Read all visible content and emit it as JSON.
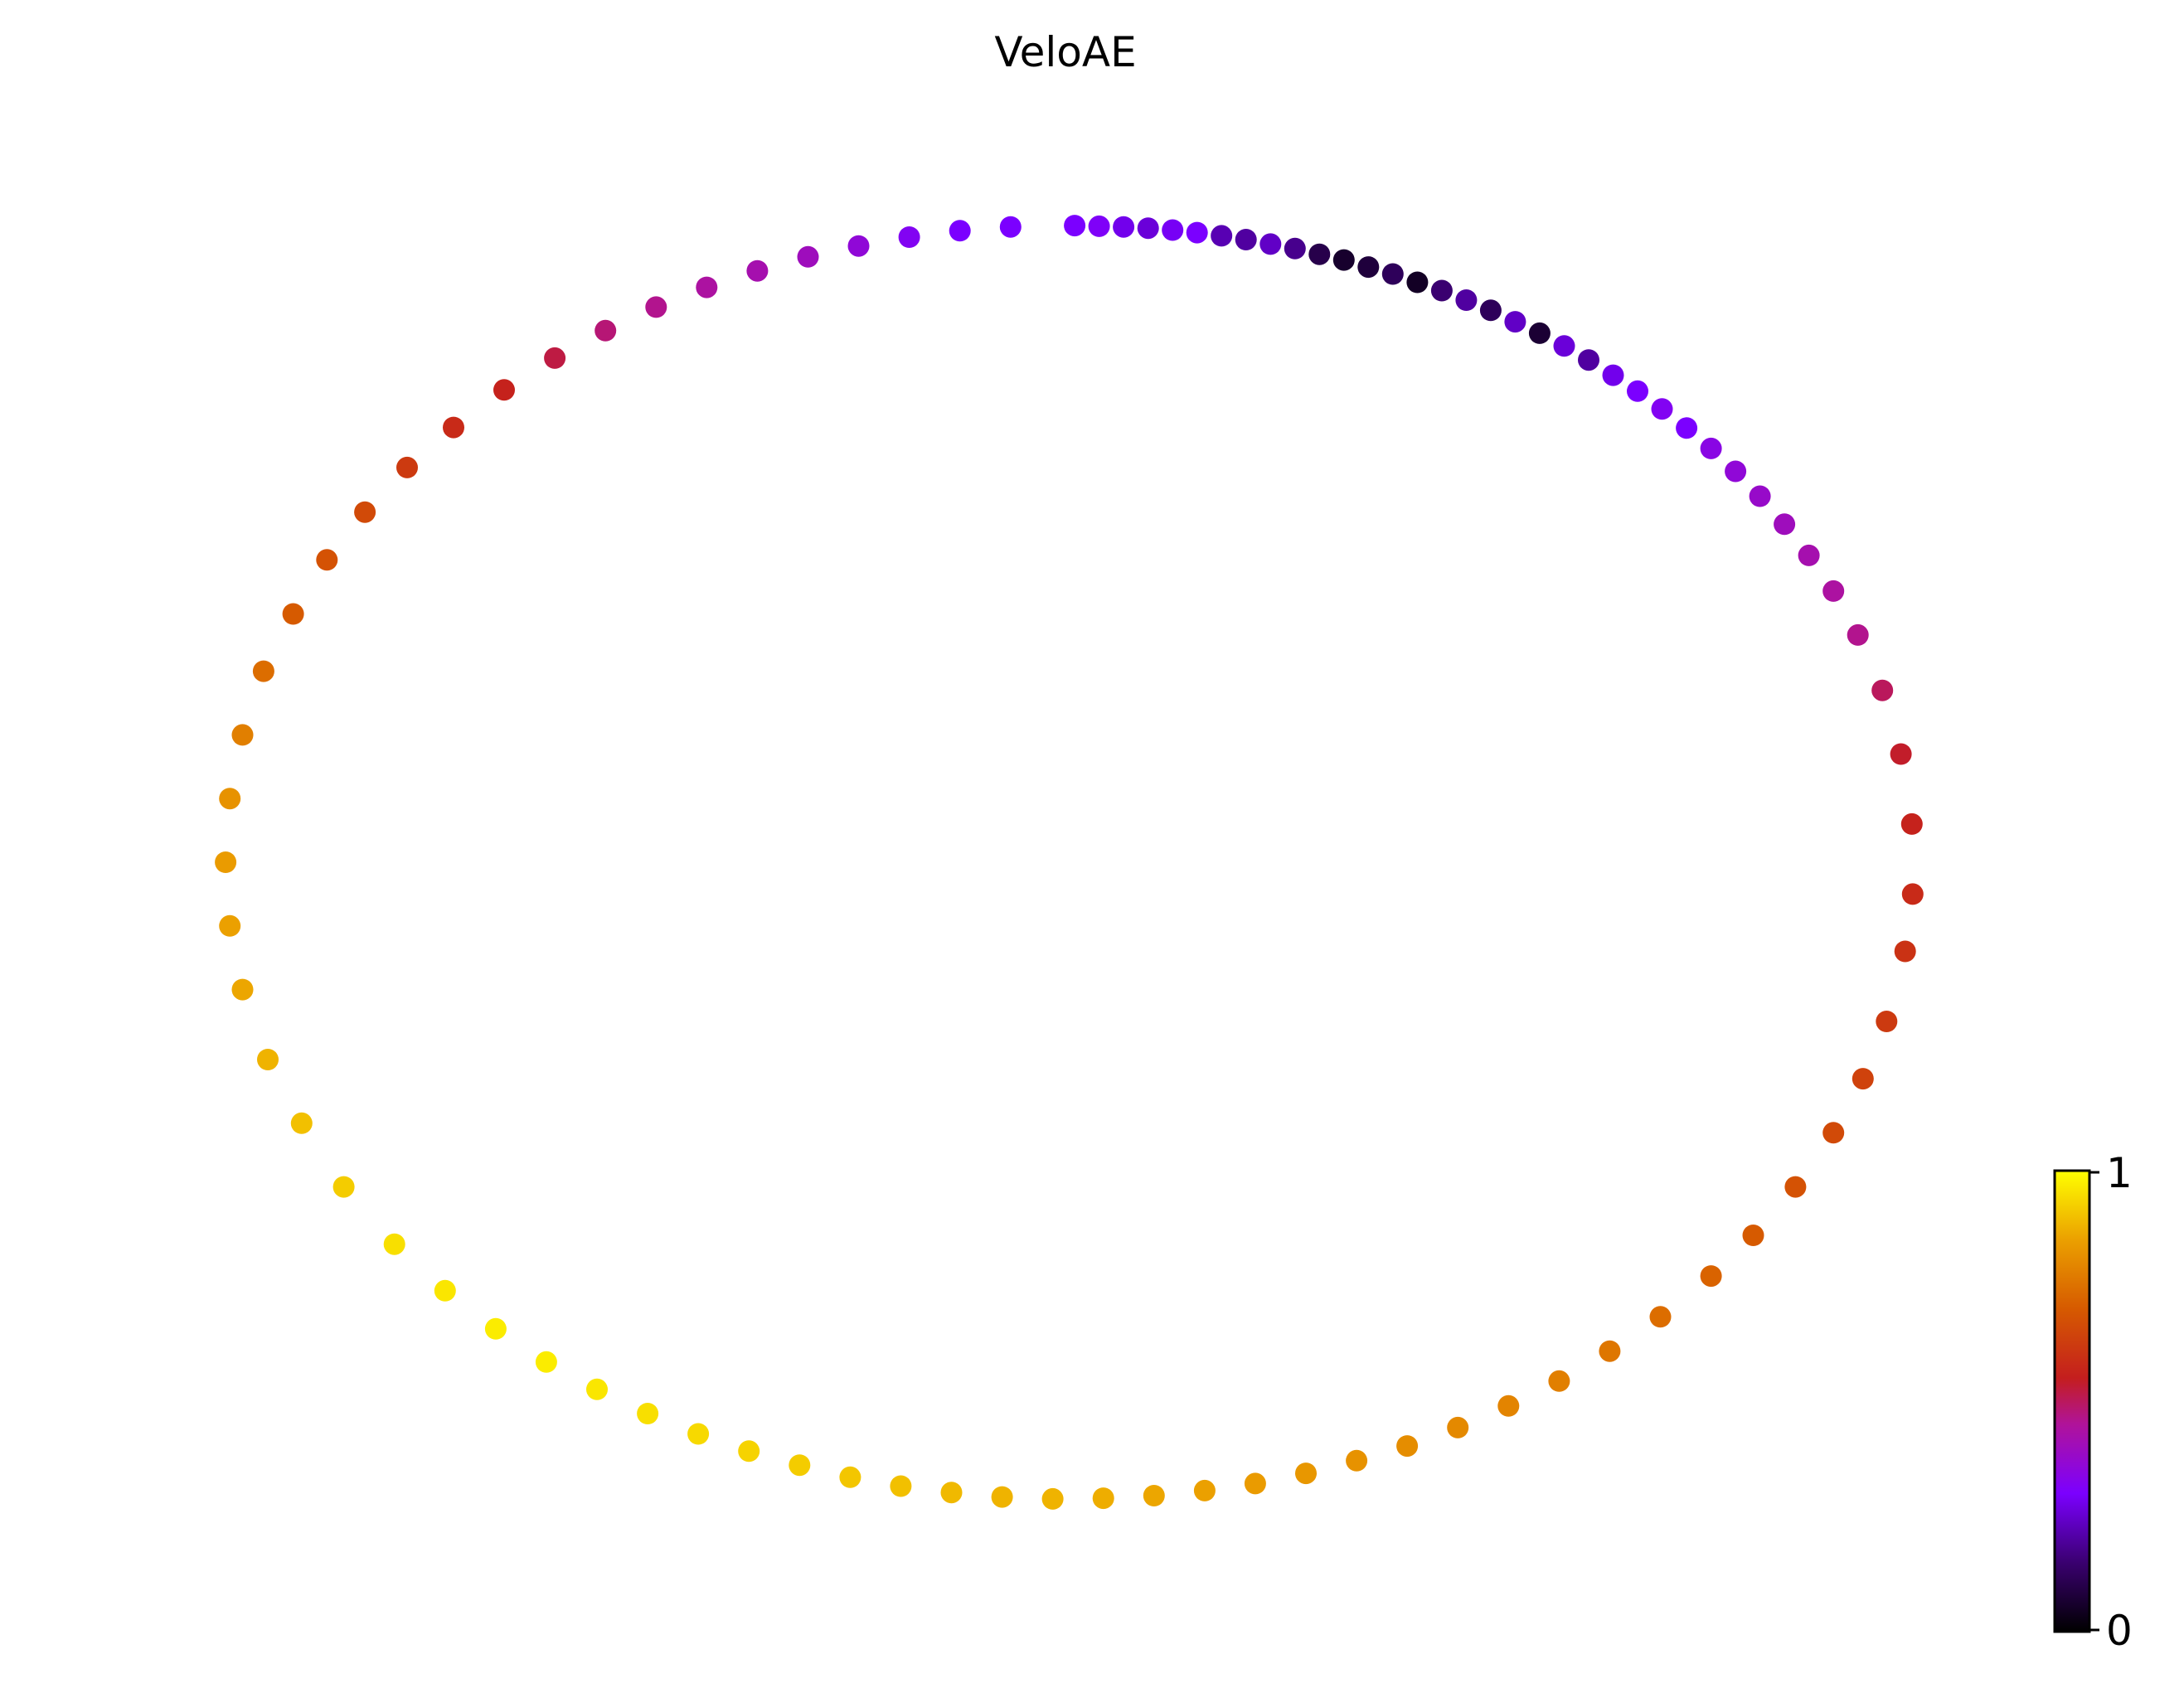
{
  "chart_data": {
    "type": "scatter",
    "title": "VeloAE",
    "xlabel": "",
    "ylabel": "",
    "axes_visible": false,
    "grid": false,
    "colormap": "gnuplot",
    "colormap_stops": [
      {
        "v": 0.0,
        "color": "#000000"
      },
      {
        "v": 0.15,
        "color": "#3a0070"
      },
      {
        "v": 0.3,
        "color": "#7b00ff"
      },
      {
        "v": 0.45,
        "color": "#b0139a"
      },
      {
        "v": 0.55,
        "color": "#c41e1e"
      },
      {
        "v": 0.7,
        "color": "#d65a00"
      },
      {
        "v": 0.85,
        "color": "#eba000"
      },
      {
        "v": 1.0,
        "color": "#ffff00"
      }
    ],
    "colorbar": {
      "min": 0,
      "max": 1,
      "ticks": [
        "0",
        "1"
      ],
      "placement": "right-bottom"
    },
    "xlim": [
      -1.12,
      1.12
    ],
    "ylim": [
      -1.12,
      1.12
    ],
    "points": [
      [
        0.006,
        1.0,
        0.3
      ],
      [
        0.035,
        0.999,
        0.31
      ],
      [
        0.064,
        0.998,
        0.28
      ],
      [
        0.093,
        0.996,
        0.26
      ],
      [
        0.122,
        0.993,
        0.29
      ],
      [
        0.151,
        0.989,
        0.3
      ],
      [
        0.18,
        0.984,
        0.22
      ],
      [
        0.209,
        0.978,
        0.2
      ],
      [
        0.238,
        0.971,
        0.24
      ],
      [
        0.267,
        0.964,
        0.18
      ],
      [
        0.296,
        0.955,
        0.1
      ],
      [
        0.325,
        0.946,
        0.06
      ],
      [
        0.354,
        0.935,
        0.08
      ],
      [
        0.383,
        0.924,
        0.12
      ],
      [
        0.412,
        0.911,
        0.05
      ],
      [
        0.441,
        0.898,
        0.15
      ],
      [
        0.47,
        0.883,
        0.2
      ],
      [
        0.499,
        0.867,
        0.12
      ],
      [
        0.528,
        0.849,
        0.24
      ],
      [
        0.557,
        0.831,
        0.07
      ],
      [
        0.586,
        0.811,
        0.26
      ],
      [
        0.615,
        0.789,
        0.2
      ],
      [
        0.644,
        0.765,
        0.28
      ],
      [
        0.673,
        0.74,
        0.3
      ],
      [
        0.702,
        0.712,
        0.32
      ],
      [
        0.731,
        0.682,
        0.3
      ],
      [
        0.76,
        0.65,
        0.34
      ],
      [
        0.789,
        0.614,
        0.36
      ],
      [
        0.818,
        0.575,
        0.38
      ],
      [
        0.847,
        0.531,
        0.4
      ],
      [
        0.876,
        0.482,
        0.42
      ],
      [
        0.905,
        0.426,
        0.44
      ],
      [
        0.934,
        0.357,
        0.46
      ],
      [
        0.963,
        0.27,
        0.5
      ],
      [
        0.985,
        0.17,
        0.54
      ],
      [
        0.998,
        0.06,
        0.56
      ],
      [
        0.999,
        -0.05,
        0.58
      ],
      [
        0.99,
        -0.14,
        0.6
      ],
      [
        0.968,
        -0.25,
        0.62
      ],
      [
        0.94,
        -0.34,
        0.64
      ],
      [
        0.905,
        -0.425,
        0.66
      ],
      [
        0.86,
        -0.51,
        0.68
      ],
      [
        0.81,
        -0.586,
        0.7
      ],
      [
        0.76,
        -0.65,
        0.72
      ],
      [
        0.7,
        -0.714,
        0.74
      ],
      [
        0.64,
        -0.768,
        0.76
      ],
      [
        0.58,
        -0.815,
        0.78
      ],
      [
        0.52,
        -0.854,
        0.79
      ],
      [
        0.46,
        -0.888,
        0.8
      ],
      [
        0.4,
        -0.917,
        0.81
      ],
      [
        0.34,
        -0.94,
        0.82
      ],
      [
        0.28,
        -0.96,
        0.83
      ],
      [
        0.22,
        -0.976,
        0.84
      ],
      [
        0.16,
        -0.987,
        0.85
      ],
      [
        0.1,
        -0.995,
        0.86
      ],
      [
        0.04,
        -0.999,
        0.87
      ],
      [
        -0.02,
        -1.0,
        0.88
      ],
      [
        -0.08,
        -0.997,
        0.88
      ],
      [
        -0.14,
        -0.99,
        0.89
      ],
      [
        -0.2,
        -0.98,
        0.9
      ],
      [
        -0.26,
        -0.966,
        0.91
      ],
      [
        -0.32,
        -0.947,
        0.92
      ],
      [
        -0.38,
        -0.925,
        0.93
      ],
      [
        -0.44,
        -0.898,
        0.94
      ],
      [
        -0.5,
        -0.866,
        0.95
      ],
      [
        -0.56,
        -0.828,
        0.96
      ],
      [
        -0.62,
        -0.785,
        0.97
      ],
      [
        -0.68,
        -0.733,
        0.97
      ],
      [
        -0.74,
        -0.673,
        0.96
      ],
      [
        -0.8,
        -0.6,
        0.95
      ],
      [
        -0.86,
        -0.51,
        0.92
      ],
      [
        -0.91,
        -0.41,
        0.9
      ],
      [
        -0.95,
        -0.31,
        0.88
      ],
      [
        -0.98,
        -0.2,
        0.86
      ],
      [
        -0.995,
        -0.1,
        0.85
      ],
      [
        -1.0,
        0.0,
        0.84
      ],
      [
        -0.995,
        0.1,
        0.82
      ],
      [
        -0.98,
        0.2,
        0.78
      ],
      [
        -0.955,
        0.3,
        0.74
      ],
      [
        -0.92,
        0.39,
        0.7
      ],
      [
        -0.88,
        0.475,
        0.68
      ],
      [
        -0.835,
        0.55,
        0.66
      ],
      [
        -0.785,
        0.62,
        0.62
      ],
      [
        -0.73,
        0.683,
        0.58
      ],
      [
        -0.67,
        0.742,
        0.56
      ],
      [
        -0.61,
        0.792,
        0.52
      ],
      [
        -0.55,
        0.835,
        0.48
      ],
      [
        -0.49,
        0.872,
        0.46
      ],
      [
        -0.43,
        0.903,
        0.44
      ],
      [
        -0.37,
        0.929,
        0.42
      ],
      [
        -0.31,
        0.951,
        0.4
      ],
      [
        -0.25,
        0.968,
        0.36
      ],
      [
        -0.19,
        0.982,
        0.32
      ],
      [
        -0.13,
        0.992,
        0.3
      ],
      [
        -0.07,
        0.998,
        0.3
      ]
    ]
  }
}
